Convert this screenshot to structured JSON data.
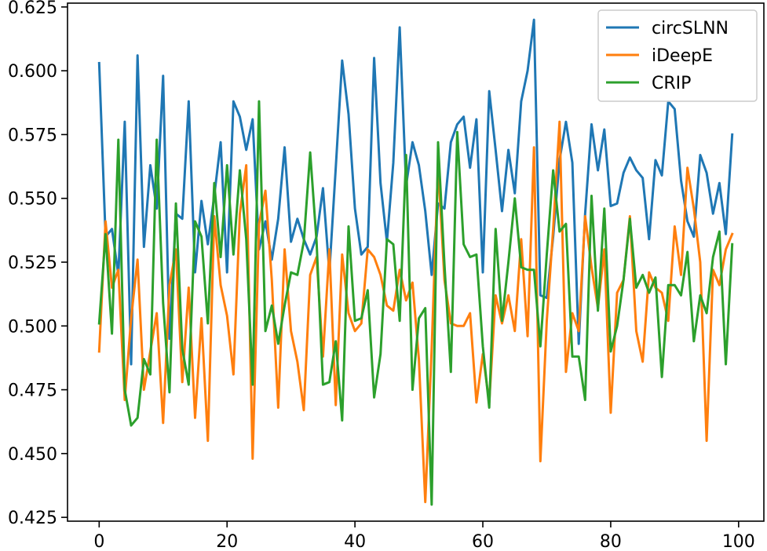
{
  "chart_data": {
    "type": "line",
    "title": "",
    "xlabel": "",
    "ylabel": "",
    "xlim": [
      -4.95,
      103.95
    ],
    "ylim": [
      0.4235,
      0.6265
    ],
    "xticks": [
      0,
      20,
      40,
      60,
      80,
      100
    ],
    "xtick_labels": [
      "0",
      "20",
      "40",
      "60",
      "80",
      "100"
    ],
    "yticks": [
      0.425,
      0.45,
      0.475,
      0.5,
      0.525,
      0.55,
      0.575,
      0.6,
      0.625
    ],
    "ytick_labels": [
      "0.425",
      "0.450",
      "0.475",
      "0.500",
      "0.525",
      "0.550",
      "0.575",
      "0.600",
      "0.625"
    ],
    "grid": false,
    "legend_position": "top-right",
    "x": [
      0,
      1,
      2,
      3,
      4,
      5,
      6,
      7,
      8,
      9,
      10,
      11,
      12,
      13,
      14,
      15,
      16,
      17,
      18,
      19,
      20,
      21,
      22,
      23,
      24,
      25,
      26,
      27,
      28,
      29,
      30,
      31,
      32,
      33,
      34,
      35,
      36,
      37,
      38,
      39,
      40,
      41,
      42,
      43,
      44,
      45,
      46,
      47,
      48,
      49,
      50,
      51,
      52,
      53,
      54,
      55,
      56,
      57,
      58,
      59,
      60,
      61,
      62,
      63,
      64,
      65,
      66,
      67,
      68,
      69,
      70,
      71,
      72,
      73,
      74,
      75,
      76,
      77,
      78,
      79,
      80,
      81,
      82,
      83,
      84,
      85,
      86,
      87,
      88,
      89,
      90,
      91,
      92,
      93,
      94,
      95,
      96,
      97,
      98,
      99
    ],
    "series": [
      {
        "name": "circSLNN",
        "color": "#1f77b4",
        "values": [
          0.603,
          0.535,
          0.538,
          0.52,
          0.58,
          0.485,
          0.606,
          0.531,
          0.563,
          0.546,
          0.598,
          0.495,
          0.544,
          0.542,
          0.588,
          0.521,
          0.549,
          0.532,
          0.551,
          0.572,
          0.521,
          0.588,
          0.582,
          0.569,
          0.581,
          0.53,
          0.541,
          0.526,
          0.542,
          0.57,
          0.533,
          0.542,
          0.534,
          0.528,
          0.535,
          0.554,
          0.521,
          0.562,
          0.604,
          0.583,
          0.546,
          0.528,
          0.531,
          0.605,
          0.556,
          0.533,
          0.564,
          0.617,
          0.555,
          0.572,
          0.563,
          0.545,
          0.52,
          0.548,
          0.546,
          0.572,
          0.579,
          0.582,
          0.562,
          0.581,
          0.521,
          0.592,
          0.569,
          0.545,
          0.569,
          0.552,
          0.588,
          0.6,
          0.62,
          0.512,
          0.511,
          0.535,
          0.565,
          0.58,
          0.564,
          0.493,
          0.544,
          0.579,
          0.561,
          0.577,
          0.547,
          0.548,
          0.56,
          0.566,
          0.561,
          0.558,
          0.534,
          0.565,
          0.559,
          0.588,
          0.585,
          0.557,
          0.541,
          0.535,
          0.567,
          0.56,
          0.544,
          0.556,
          0.536,
          0.575
        ]
      },
      {
        "name": "iDeepE",
        "color": "#ff7f0e",
        "values": [
          0.49,
          0.541,
          0.515,
          0.522,
          0.471,
          0.503,
          0.526,
          0.475,
          0.49,
          0.505,
          0.462,
          0.516,
          0.53,
          0.478,
          0.515,
          0.464,
          0.503,
          0.455,
          0.543,
          0.516,
          0.504,
          0.481,
          0.544,
          0.563,
          0.448,
          0.54,
          0.553,
          0.518,
          0.468,
          0.53,
          0.498,
          0.486,
          0.467,
          0.52,
          0.527,
          0.488,
          0.53,
          0.469,
          0.528,
          0.505,
          0.498,
          0.501,
          0.53,
          0.527,
          0.52,
          0.508,
          0.506,
          0.522,
          0.51,
          0.517,
          0.487,
          0.431,
          0.491,
          0.563,
          0.518,
          0.501,
          0.5,
          0.5,
          0.505,
          0.47,
          0.489,
          0.47,
          0.512,
          0.501,
          0.512,
          0.498,
          0.534,
          0.496,
          0.57,
          0.447,
          0.502,
          0.538,
          0.58,
          0.482,
          0.505,
          0.498,
          0.543,
          0.523,
          0.507,
          0.53,
          0.466,
          0.513,
          0.518,
          0.543,
          0.498,
          0.486,
          0.521,
          0.515,
          0.513,
          0.502,
          0.539,
          0.52,
          0.562,
          0.546,
          0.525,
          0.455,
          0.522,
          0.516,
          0.53,
          0.536
        ]
      },
      {
        "name": "CRIP",
        "color": "#2ca02c",
        "values": [
          0.501,
          0.536,
          0.497,
          0.573,
          0.475,
          0.461,
          0.464,
          0.487,
          0.481,
          0.573,
          0.509,
          0.474,
          0.548,
          0.491,
          0.477,
          0.541,
          0.535,
          0.501,
          0.556,
          0.527,
          0.563,
          0.528,
          0.561,
          0.534,
          0.477,
          0.588,
          0.498,
          0.508,
          0.493,
          0.508,
          0.521,
          0.52,
          0.533,
          0.568,
          0.533,
          0.477,
          0.478,
          0.494,
          0.463,
          0.539,
          0.502,
          0.503,
          0.514,
          0.472,
          0.489,
          0.534,
          0.532,
          0.502,
          0.567,
          0.475,
          0.503,
          0.507,
          0.43,
          0.572,
          0.524,
          0.482,
          0.576,
          0.532,
          0.527,
          0.528,
          0.492,
          0.468,
          0.538,
          0.502,
          0.525,
          0.55,
          0.523,
          0.522,
          0.522,
          0.492,
          0.528,
          0.561,
          0.537,
          0.54,
          0.488,
          0.488,
          0.471,
          0.551,
          0.506,
          0.546,
          0.49,
          0.5,
          0.518,
          0.542,
          0.515,
          0.52,
          0.513,
          0.519,
          0.48,
          0.516,
          0.516,
          0.512,
          0.529,
          0.494,
          0.512,
          0.505,
          0.527,
          0.537,
          0.485,
          0.532
        ]
      }
    ]
  }
}
